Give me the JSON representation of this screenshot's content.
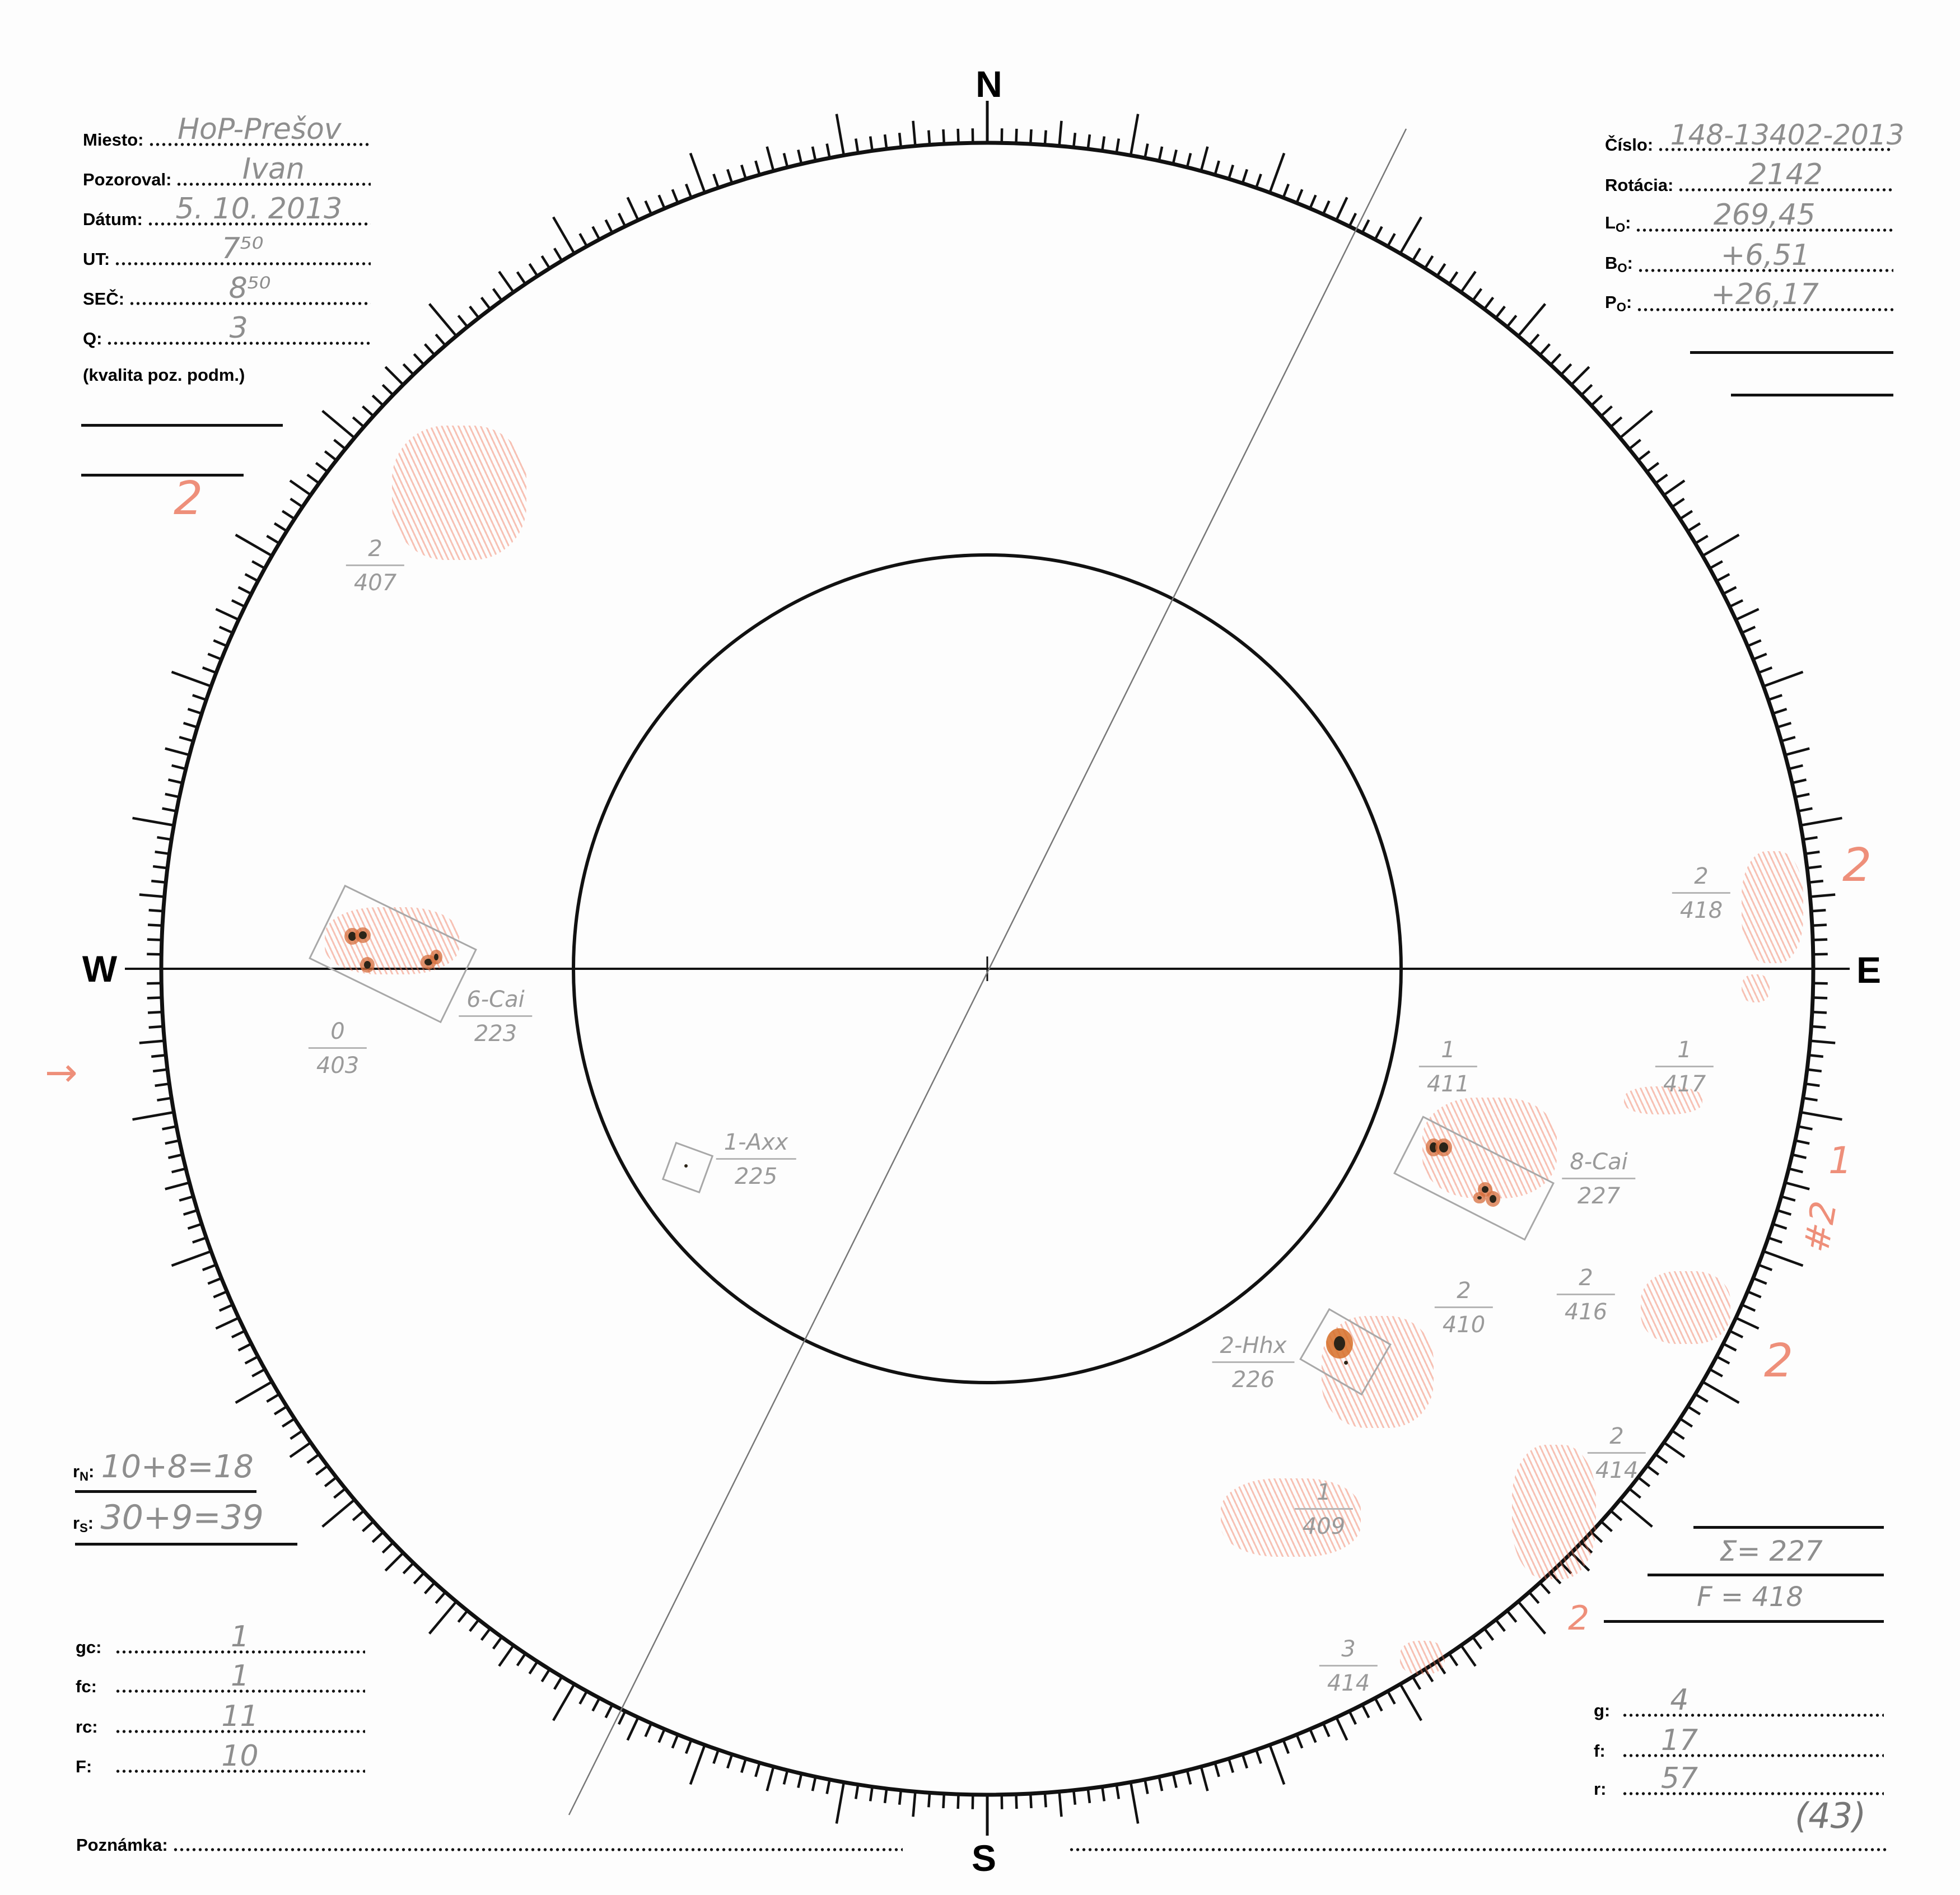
{
  "compass": {
    "north": "N",
    "south": "S",
    "west": "W",
    "east": "E"
  },
  "header_left": {
    "miesto": {
      "label": "Miesto:",
      "value": "HoP-Prešov"
    },
    "pozoroval": {
      "label": "Pozoroval:",
      "value": "Ivan"
    },
    "datum": {
      "label": "Dátum:",
      "value": "5. 10. 2013"
    },
    "ut": {
      "label": "UT:",
      "value": "7⁵⁰"
    },
    "sec": {
      "label": "SEČ:",
      "value": "8⁵⁰"
    },
    "q": {
      "label": "Q:",
      "value": "3"
    },
    "q_note": "(kvalita poz. podm.)"
  },
  "header_right": {
    "cislo": {
      "label": "Číslo:",
      "value": "148-13402-2013"
    },
    "rotacia": {
      "label": "Rotácia:",
      "value": "2142"
    },
    "l0": {
      "label": "L",
      "sub": "O",
      "value": "269,45"
    },
    "b0": {
      "label": "B",
      "sub": "O",
      "value": "+6,51"
    },
    "p0": {
      "label": "P",
      "sub": "O",
      "value": "+26,17"
    }
  },
  "bottom_left": {
    "rn": {
      "label": "r",
      "sub": "N",
      "value": "10+8=18"
    },
    "rs": {
      "label": "r",
      "sub": "S",
      "value": "30+9=39"
    },
    "gc": {
      "label": "gc:",
      "value": "1"
    },
    "fc": {
      "label": "fc:",
      "value": "1"
    },
    "rc": {
      "label": "rc:",
      "value": "11"
    },
    "F": {
      "label": "F:",
      "value": "10"
    }
  },
  "bottom_right": {
    "sum_sunspots": "Σ= 227",
    "sum_faculae": "F = 418",
    "g": {
      "label": "g:",
      "value": "4"
    },
    "f": {
      "label": "f:",
      "value": "17"
    },
    "r": {
      "label": "r:",
      "value": "57"
    },
    "page_number": "(43)"
  },
  "poznamka": {
    "label": "Poznámka:",
    "value": ""
  },
  "groups": [
    {
      "num": "2",
      "den": "407"
    },
    {
      "num": "0",
      "den": "403"
    },
    {
      "num": "6-Cai",
      "den": "223"
    },
    {
      "num": "1-Axx",
      "den": "225"
    },
    {
      "num": "1",
      "den": "411"
    },
    {
      "num": "1",
      "den": "417"
    },
    {
      "num": "2",
      "den": "418"
    },
    {
      "num": "8-Cai",
      "den": "227"
    },
    {
      "num": "2",
      "den": "410"
    },
    {
      "num": "2",
      "den": "416"
    },
    {
      "num": "2-Hhx",
      "den": "226"
    },
    {
      "num": "2",
      "den": "414"
    },
    {
      "num": "1",
      "den": "409"
    },
    {
      "num": "3",
      "den": "414"
    }
  ],
  "annotations": [
    "2",
    "2",
    "1",
    "#2",
    "2",
    "2",
    "→"
  ],
  "colors": {
    "ink": "#111111",
    "pencil": "#8e8e8e",
    "faculae": "#ee8f7a",
    "spot": "#2b2418"
  }
}
